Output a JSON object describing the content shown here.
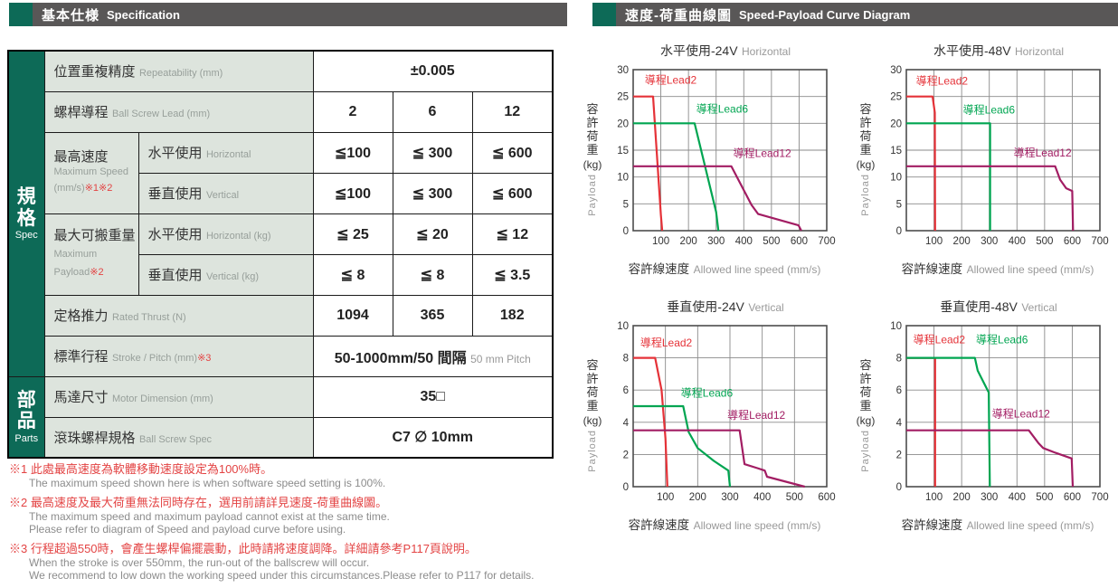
{
  "accent": {
    "teal": "#0d6a57",
    "header_gray": "#595757",
    "label_bg": "#dde4dd",
    "red": "#e53238",
    "green": "#00a551",
    "purple": "#a21d63",
    "note_red": "#e34343"
  },
  "left_panel": {
    "header": {
      "zh": "基本仕様",
      "en": "Specification"
    },
    "sidebar": {
      "spec": {
        "chars": [
          "規",
          "格"
        ],
        "en": "Spec"
      },
      "parts": {
        "chars": [
          "部",
          "品"
        ],
        "en": "Parts"
      }
    },
    "table": {
      "repeatability": {
        "zh": "位置重複精度",
        "en": "Repeatability (mm)",
        "value": "±0.005"
      },
      "ball_screw_lead": {
        "zh": "螺桿導程",
        "en": "Ball Screw Lead (mm)",
        "values": [
          "2",
          "6",
          "12"
        ]
      },
      "max_speed": {
        "zh": "最高速度",
        "en": "Maximum Speed",
        "unit": "(mm/s)",
        "note": "※1※2",
        "horizontal": {
          "zh": "水平使用",
          "en": "Horizontal",
          "values": [
            "≦100",
            "≦ 300",
            "≦ 600"
          ]
        },
        "vertical": {
          "zh": "垂直使用",
          "en": "Vertical",
          "values": [
            "≦100",
            "≦ 300",
            "≦ 600"
          ]
        }
      },
      "max_payload": {
        "zh": "最大可搬重量",
        "en": "Maximum Payload",
        "note": "※2",
        "horizontal": {
          "zh": "水平使用",
          "en": "Horizontal (kg)",
          "values": [
            "≦ 25",
            "≦ 20",
            "≦ 12"
          ]
        },
        "vertical": {
          "zh": "垂直使用",
          "en": "Vertical (kg)",
          "values": [
            "≦ 8",
            "≦ 8",
            "≦ 3.5"
          ]
        }
      },
      "rated_thrust": {
        "zh": "定格推力",
        "en": "Rated Thrust (N)",
        "values": [
          "1094",
          "365",
          "182"
        ]
      },
      "stroke": {
        "zh": "標準行程",
        "en": "Stroke / Pitch (mm)",
        "note": "※3",
        "value_main": "50-1000mm/50 間隔",
        "value_sub": "50 mm Pitch"
      },
      "motor": {
        "zh": "馬達尺寸",
        "en": "Motor Dimension (mm)",
        "value": "35□"
      },
      "ball_screw_spec": {
        "zh": "滾珠螺桿規格",
        "en": "Ball Screw Spec",
        "value": "C7 ∅ 10mm"
      }
    },
    "footnotes": [
      {
        "zh": "※1 此處最高速度為軟體移動速度設定為100%時。",
        "en": [
          "The maximum speed shown here is when software speed setting is 100%."
        ]
      },
      {
        "zh": "※2 最高速度及最大荷重無法同時存在，選用前請詳見速度-荷重曲線圖。",
        "en": [
          "The maximum speed and maximum payload cannot exist at the same time.",
          "Please refer to diagram of Speed and payload curve before using."
        ]
      },
      {
        "zh": "※3 行程超過550時，會產生螺桿偏擺震動，此時請將速度調降。詳細請參考P117頁說明。",
        "en": [
          "When the stroke is over 550mm, the run-out of the ballscrew will occur.",
          "We recommend to low down the working speed under this circumstances.Please refer to P117 for details."
        ]
      }
    ]
  },
  "right_panel": {
    "header": {
      "zh": "速度-荷重曲線圖",
      "en": "Speed-Payload Curve Diagram"
    }
  },
  "chart_data": [
    {
      "type": "line",
      "title_zh": "水平使用-24V",
      "title_en": "Horizontal",
      "xlabel_zh": "容許線速度",
      "xlabel_en": "Allowed line speed (mm/s)",
      "ylabel_chars": [
        "容",
        "許",
        "荷",
        "重"
      ],
      "ylabel_unit": "(kg)",
      "ylabel_en": "Payload",
      "xlim": [
        0,
        700
      ],
      "ylim": [
        0,
        30
      ],
      "grid": true,
      "legend_position": "inline-labels",
      "xticks": [
        100,
        200,
        300,
        400,
        500,
        600,
        700
      ],
      "yticks": [
        0,
        5,
        10,
        15,
        20,
        25,
        30
      ],
      "series": [
        {
          "name": "導程Lead2",
          "color": "#e53238",
          "label_pos": [
            42,
            27.4
          ],
          "points": [
            [
              0,
              25
            ],
            [
              72,
              25
            ],
            [
              100,
              3
            ],
            [
              105,
              0
            ]
          ]
        },
        {
          "name": "導程Lead6",
          "color": "#00a551",
          "label_pos": [
            228,
            22
          ],
          "points": [
            [
              0,
              20
            ],
            [
              222,
              20
            ],
            [
              300,
              3.5
            ],
            [
              308,
              0
            ]
          ]
        },
        {
          "name": "導程Lead12",
          "color": "#a21d63",
          "label_pos": [
            362,
            13.7
          ],
          "points": [
            [
              0,
              12
            ],
            [
              355,
              12
            ],
            [
              428,
              4.8
            ],
            [
              452,
              3.1
            ],
            [
              598,
              1.0
            ],
            [
              608,
              0
            ]
          ]
        }
      ]
    },
    {
      "type": "line",
      "title_zh": "水平使用-48V",
      "title_en": "Horizontal",
      "xlabel_zh": "容許線速度",
      "xlabel_en": "Allowed line speed (mm/s)",
      "ylabel_chars": [
        "容",
        "許",
        "荷",
        "重"
      ],
      "ylabel_unit": "(kg)",
      "ylabel_en": "Payload",
      "xlim": [
        0,
        700
      ],
      "ylim": [
        0,
        30
      ],
      "grid": true,
      "legend_position": "inline-labels",
      "xticks": [
        100,
        200,
        300,
        400,
        500,
        600,
        700
      ],
      "yticks": [
        0,
        5,
        10,
        15,
        20,
        25,
        30
      ],
      "series": [
        {
          "name": "導程Lead2",
          "color": "#e53238",
          "label_pos": [
            35,
            27.2
          ],
          "points": [
            [
              0,
              25
            ],
            [
              95,
              25
            ],
            [
              103,
              22
            ],
            [
              104,
              0
            ]
          ]
        },
        {
          "name": "導程Lead6",
          "color": "#00a551",
          "label_pos": [
            205,
            21.8
          ],
          "points": [
            [
              0,
              20
            ],
            [
              303,
              20
            ],
            [
              303,
              0
            ]
          ]
        },
        {
          "name": "導程Lead12",
          "color": "#a21d63",
          "label_pos": [
            388,
            13.8
          ],
          "points": [
            [
              0,
              12
            ],
            [
              538,
              12
            ],
            [
              556,
              9.5
            ],
            [
              578,
              7.9
            ],
            [
              600,
              7.4
            ],
            [
              603,
              0
            ]
          ]
        }
      ]
    },
    {
      "type": "line",
      "title_zh": "垂直使用-24V",
      "title_en": "Vertical",
      "xlabel_zh": "容許線速度",
      "xlabel_en": "Allowed line speed (mm/s)",
      "ylabel_chars": [
        "容",
        "許",
        "荷",
        "重"
      ],
      "ylabel_unit": "(kg)",
      "ylabel_en": "Payload",
      "xlim": [
        0,
        600
      ],
      "ylim": [
        0,
        10
      ],
      "grid": true,
      "legend_position": "inline-labels",
      "xticks": [
        100,
        200,
        300,
        400,
        500,
        600
      ],
      "yticks": [
        0,
        2,
        4,
        6,
        8,
        10
      ],
      "series": [
        {
          "name": "導程Lead2",
          "color": "#e53238",
          "label_pos": [
            22,
            8.7
          ],
          "points": [
            [
              0,
              8
            ],
            [
              68,
              8
            ],
            [
              88,
              6
            ],
            [
              100,
              3
            ],
            [
              106,
              0
            ]
          ]
        },
        {
          "name": "導程Lead6",
          "color": "#00a551",
          "label_pos": [
            148,
            5.6
          ],
          "points": [
            [
              0,
              5
            ],
            [
              155,
              5
            ],
            [
              172,
              3.4
            ],
            [
              200,
              2.4
            ],
            [
              250,
              1.6
            ],
            [
              295,
              1.0
            ],
            [
              300,
              0
            ]
          ]
        },
        {
          "name": "導程Lead12",
          "color": "#a21d63",
          "label_pos": [
            292,
            4.2
          ],
          "points": [
            [
              0,
              3.5
            ],
            [
              330,
              3.5
            ],
            [
              345,
              1.4
            ],
            [
              385,
              1.15
            ],
            [
              408,
              1.0
            ],
            [
              415,
              0.62
            ],
            [
              532,
              0
            ]
          ]
        }
      ]
    },
    {
      "type": "line",
      "title_zh": "垂直使用-48V",
      "title_en": "Vertical",
      "xlabel_zh": "容許線速度",
      "xlabel_en": "Allowed line speed (mm/s)",
      "ylabel_chars": [
        "容",
        "許",
        "荷",
        "重"
      ],
      "ylabel_unit": "(kg)",
      "ylabel_en": "Payload",
      "xlim": [
        0,
        700
      ],
      "ylim": [
        0,
        10
      ],
      "grid": true,
      "legend_position": "inline-labels",
      "xticks": [
        100,
        200,
        300,
        400,
        500,
        600,
        700
      ],
      "yticks": [
        0,
        2,
        4,
        6,
        8,
        10
      ],
      "series": [
        {
          "name": "導程Lead2",
          "color": "#e53238",
          "label_pos": [
            25,
            8.9
          ],
          "points": [
            [
              0,
              8
            ],
            [
              104,
              8
            ],
            [
              104,
              0
            ]
          ]
        },
        {
          "name": "導程Lead6",
          "color": "#00a551",
          "label_pos": [
            252,
            8.9
          ],
          "points": [
            [
              0,
              8
            ],
            [
              248,
              8
            ],
            [
              258,
              7.2
            ],
            [
              298,
              5.85
            ],
            [
              302,
              0
            ]
          ]
        },
        {
          "name": "導程Lead12",
          "color": "#a21d63",
          "label_pos": [
            310,
            4.3
          ],
          "points": [
            [
              0,
              3.5
            ],
            [
              443,
              3.5
            ],
            [
              478,
              2.7
            ],
            [
              495,
              2.4
            ],
            [
              540,
              2.1
            ],
            [
              598,
              1.75
            ],
            [
              602,
              0
            ]
          ]
        }
      ]
    }
  ]
}
